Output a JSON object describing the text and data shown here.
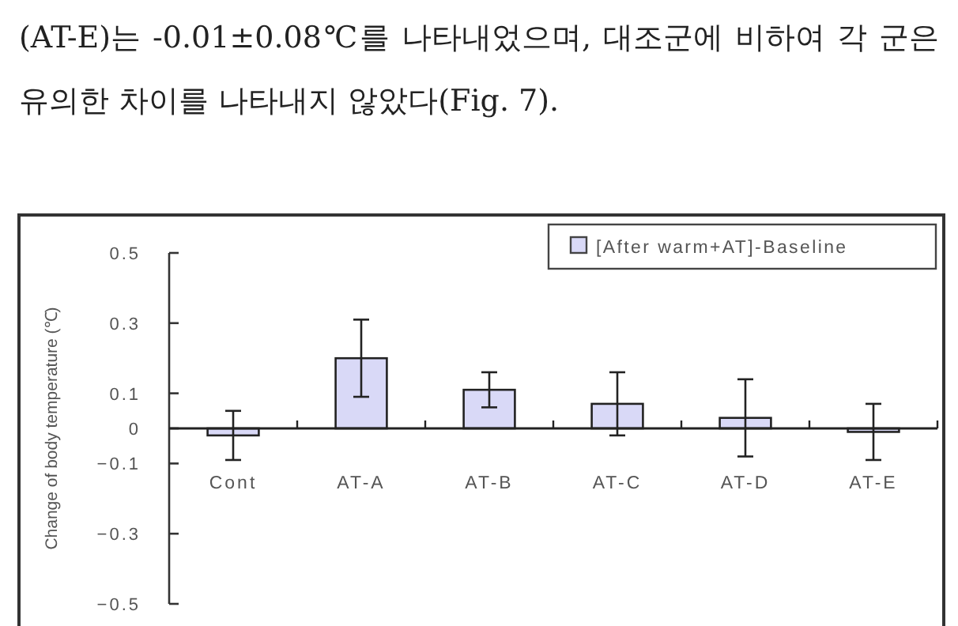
{
  "chart_data": {
    "type": "bar",
    "annotations": [
      "(AT-E)는 -0.01±0.08℃를 나타내었으며, 대조군에 비하여 각 군은 유의한 차이를 나타내지 않았다(Fig. 7)."
    ],
    "ylabel": "Change of body temperature (℃)",
    "categories": [
      "Cont",
      "AT-A",
      "AT-B",
      "AT-C",
      "AT-D",
      "AT-E"
    ],
    "series": [
      {
        "name": "[After warm+AT]-Baseline",
        "color": "#d9d9f7",
        "values": [
          -0.02,
          0.2,
          0.11,
          0.07,
          0.03,
          -0.01
        ],
        "errors": [
          0.07,
          0.11,
          0.05,
          0.09,
          0.11,
          0.08
        ]
      }
    ],
    "ylim": [
      -0.5,
      0.5
    ],
    "yticks": [
      {
        "value": 0.5,
        "label": "0.5"
      },
      {
        "value": 0.3,
        "label": "0.3"
      },
      {
        "value": 0.1,
        "label": "0.1"
      },
      0,
      {
        "value": -0.1,
        "label": "−0.1"
      },
      {
        "value": -0.3,
        "label": "−0.3"
      },
      {
        "value": -0.5,
        "label": "−0.5"
      }
    ],
    "legend": "top right",
    "grid": false
  }
}
